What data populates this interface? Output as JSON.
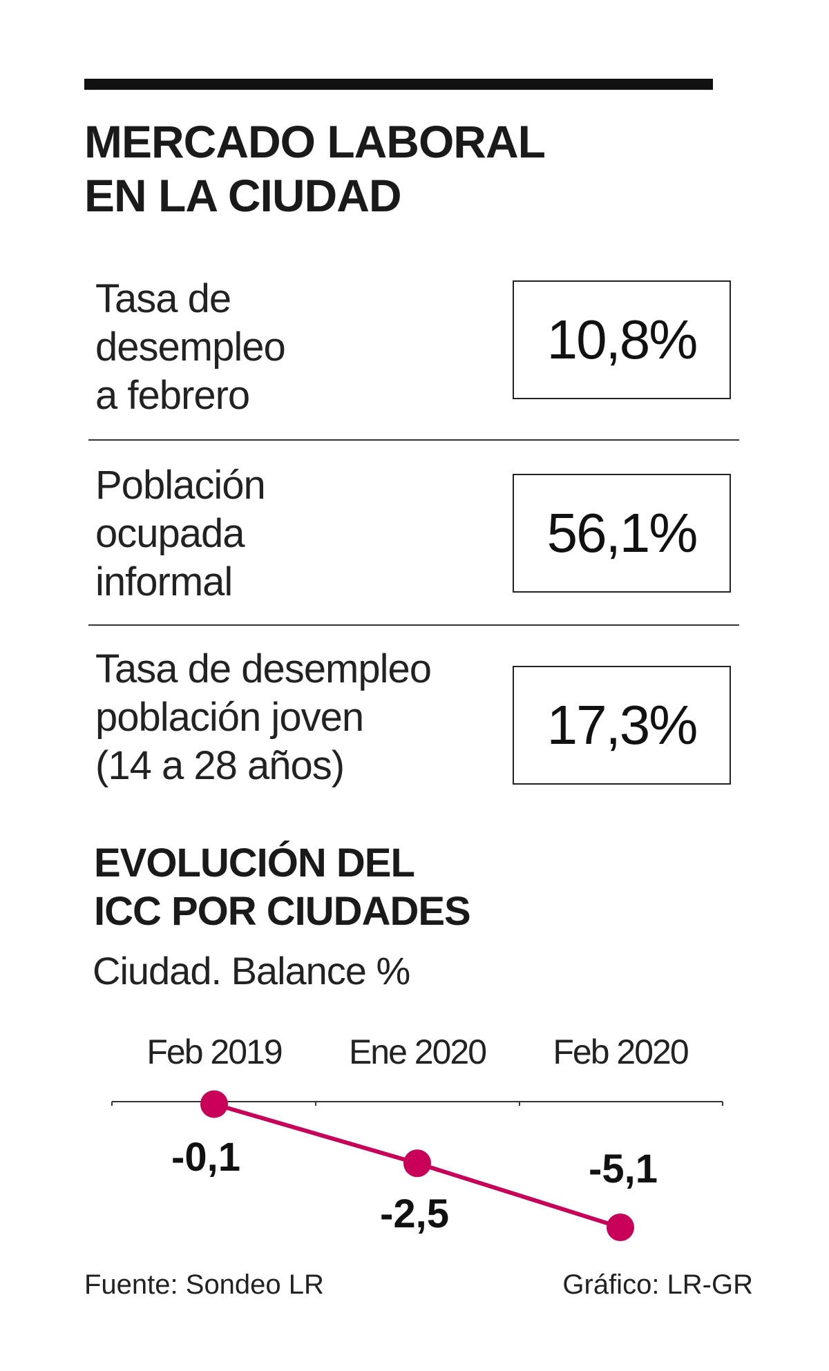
{
  "header": {
    "title_line1": "MERCADO LABORAL",
    "title_line2": "EN LA CIUDAD"
  },
  "stats": [
    {
      "label": "Tasa de\ndesempleo\na febrero",
      "value": "10,8%"
    },
    {
      "label": "Población\nocupada\ninformal",
      "value": "56,1%"
    },
    {
      "label": "Tasa de desempleo\npoblación joven\n(14 a 28 años)",
      "value": "17,3%"
    }
  ],
  "chart_title_line1": "EVOLUCIÓN DEL",
  "chart_title_line2": "ICC POR CIUDADES",
  "chart_subtitle": "Ciudad. Balance %",
  "chart_data": {
    "type": "line",
    "categories": [
      "Feb 2019",
      "Ene 2020",
      "Feb 2020"
    ],
    "values": [
      -0.1,
      -2.5,
      -5.1
    ],
    "value_labels": [
      "-0,1",
      "-2,5",
      "-5,1"
    ],
    "ylim": [
      -5.1,
      0
    ],
    "line_color": "#c8005a"
  },
  "footer": {
    "source": "Fuente: Sondeo LR",
    "credit": "Gráfico: LR-GR"
  },
  "colors": {
    "accent": "#c8005a",
    "text": "#1a1a1a"
  }
}
